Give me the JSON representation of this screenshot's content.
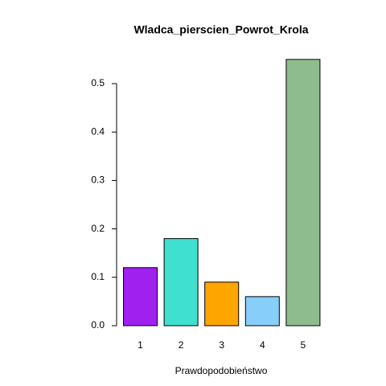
{
  "chart_data": {
    "type": "bar",
    "title": "Wladca_pierscien_Powrot_Krola",
    "xlabel": "Prawdopodobieństwo",
    "categories": [
      "1",
      "2",
      "3",
      "4",
      "5"
    ],
    "values": [
      0.12,
      0.18,
      0.09,
      0.06,
      0.55
    ],
    "colors": [
      "#a020f0",
      "#40e0d0",
      "#ffa500",
      "#87cefa",
      "#8fbc8f"
    ],
    "ylim": [
      0,
      0.55
    ],
    "yticks": [
      {
        "value": 0,
        "label": "0.0"
      },
      0.1,
      0.2,
      0.3,
      0.4,
      0.5
    ]
  }
}
